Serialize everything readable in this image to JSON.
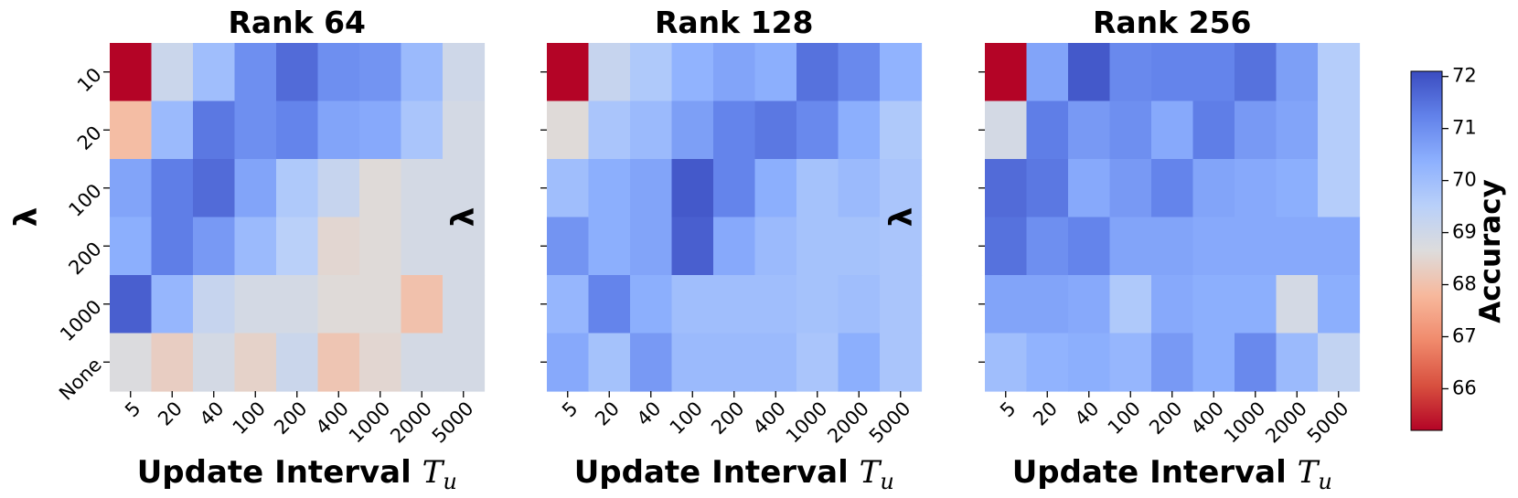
{
  "chart_data": {
    "type": "heatmap",
    "panels": [
      {
        "title": "Rank 64",
        "xlabel": "Update Interval",
        "xlabel_math": "T",
        "xlabel_sub": "u",
        "ylabel": "λ",
        "x_categories": [
          "5",
          "20",
          "40",
          "100",
          "200",
          "400",
          "1000",
          "2000",
          "5000"
        ],
        "y_categories": [
          "10",
          "20",
          "100",
          "200",
          "1000",
          "None"
        ],
        "values": [
          [
            65.2,
            69.1,
            70.0,
            71.0,
            71.6,
            71.0,
            70.9,
            70.1,
            69.0
          ],
          [
            67.9,
            70.1,
            71.4,
            71.0,
            71.2,
            70.6,
            70.5,
            69.8,
            68.9
          ],
          [
            70.6,
            71.3,
            71.6,
            70.6,
            69.7,
            69.2,
            68.6,
            68.9,
            68.9
          ],
          [
            70.4,
            71.3,
            70.8,
            70.1,
            69.5,
            68.5,
            68.6,
            68.9,
            68.9
          ],
          [
            71.8,
            70.2,
            69.2,
            68.9,
            68.9,
            68.6,
            68.6,
            68.0,
            68.9
          ],
          [
            68.7,
            68.3,
            68.9,
            68.4,
            69.1,
            68.1,
            68.5,
            68.9,
            68.9
          ]
        ]
      },
      {
        "title": "Rank 128",
        "xlabel": "Update Interval",
        "xlabel_math": "T",
        "xlabel_sub": "u",
        "ylabel": "λ",
        "x_categories": [
          "5",
          "20",
          "40",
          "100",
          "200",
          "400",
          "1000",
          "2000",
          "5000"
        ],
        "y_categories": [
          "10",
          "20",
          "100",
          "200",
          "1000",
          "None"
        ],
        "values": [
          [
            65.2,
            69.2,
            69.7,
            70.3,
            70.6,
            70.4,
            71.5,
            71.1,
            70.3
          ],
          [
            68.6,
            69.8,
            70.1,
            70.7,
            71.2,
            71.4,
            71.1,
            70.4,
            69.7
          ],
          [
            70.0,
            70.4,
            70.6,
            71.9,
            71.2,
            70.4,
            69.9,
            70.1,
            69.8
          ],
          [
            70.9,
            70.4,
            70.6,
            71.8,
            70.5,
            70.1,
            69.9,
            69.9,
            69.8
          ],
          [
            70.2,
            71.2,
            70.4,
            70.0,
            70.0,
            70.0,
            69.9,
            70.0,
            69.8
          ],
          [
            70.5,
            69.9,
            70.8,
            70.1,
            70.1,
            70.1,
            69.8,
            70.4,
            69.8
          ]
        ]
      },
      {
        "title": "Rank 256",
        "xlabel": "Update Interval",
        "xlabel_math": "T",
        "xlabel_sub": "u",
        "ylabel": "λ",
        "x_categories": [
          "5",
          "20",
          "40",
          "100",
          "200",
          "400",
          "1000",
          "2000",
          "5000"
        ],
        "y_categories": [
          "10",
          "20",
          "100",
          "200",
          "1000",
          "None"
        ],
        "values": [
          [
            65.2,
            70.6,
            71.9,
            71.1,
            71.2,
            71.2,
            71.5,
            70.7,
            69.6
          ],
          [
            68.9,
            71.3,
            70.8,
            71.0,
            70.5,
            71.3,
            70.8,
            70.6,
            69.6
          ],
          [
            71.6,
            71.4,
            70.5,
            70.8,
            71.2,
            70.6,
            70.5,
            70.4,
            69.6
          ],
          [
            71.5,
            71.0,
            71.2,
            70.6,
            70.6,
            70.5,
            70.5,
            70.5,
            70.5
          ],
          [
            70.6,
            70.6,
            70.5,
            69.7,
            70.5,
            70.4,
            70.4,
            68.9,
            70.4
          ],
          [
            70.0,
            70.3,
            70.4,
            70.2,
            70.8,
            70.4,
            71.1,
            70.1,
            69.3
          ]
        ]
      }
    ],
    "colorbar": {
      "label": "Accuracy",
      "vmin": 65.2,
      "vmax": 72.1,
      "ticks": [
        "66",
        "67",
        "68",
        "69",
        "70",
        "71",
        "72"
      ],
      "colormap": "coolwarm_r"
    }
  }
}
